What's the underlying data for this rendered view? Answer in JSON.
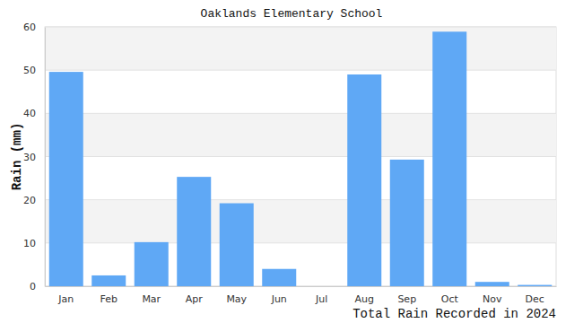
{
  "chart_data": {
    "type": "bar",
    "title": "Oaklands Elementary School",
    "categories": [
      "Jan",
      "Feb",
      "Mar",
      "Apr",
      "May",
      "Jun",
      "Jul",
      "Aug",
      "Sep",
      "Oct",
      "Nov",
      "Dec"
    ],
    "values": [
      49.6,
      2.5,
      10.2,
      25.3,
      19.2,
      4.0,
      0,
      49.0,
      29.3,
      58.9,
      1.0,
      0.3
    ],
    "color": "#5fa8f5",
    "ylabel": "Rain (mm)",
    "xlabel": "Total Rain Recorded in 2024",
    "ylim": [
      0,
      60
    ],
    "yticks": [
      0,
      10,
      20,
      30,
      40,
      50,
      60
    ],
    "grid": true
  }
}
